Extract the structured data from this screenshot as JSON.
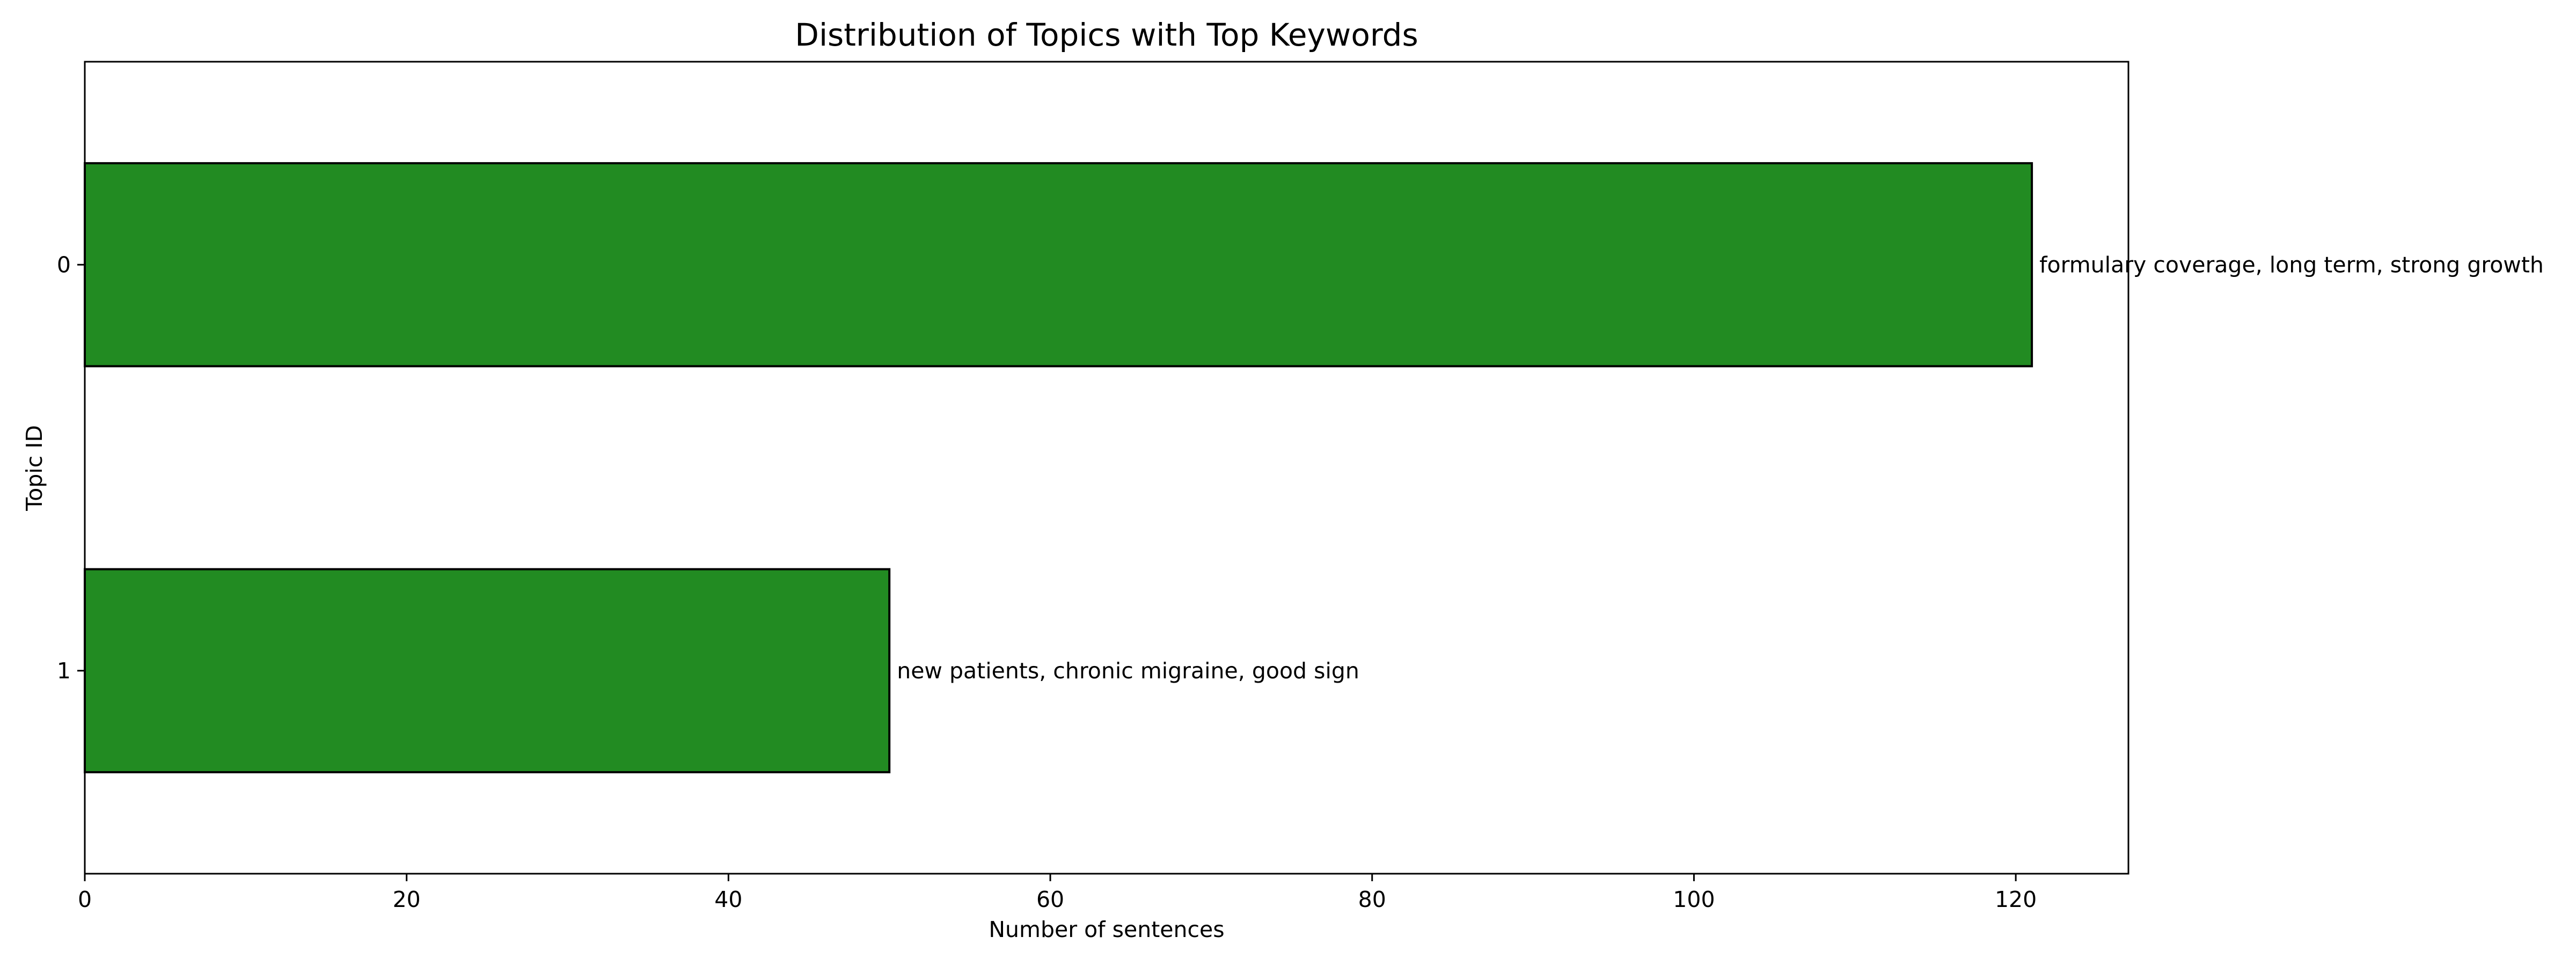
{
  "chart_data": {
    "type": "bar",
    "orientation": "horizontal",
    "title": "Distribution of Topics with Top Keywords",
    "xlabel": "Number of sentences",
    "ylabel": "Topic ID",
    "categories": [
      "0",
      "1"
    ],
    "values": [
      121,
      50
    ],
    "data_labels": [
      "formulary coverage, long term, strong growth",
      "new patients, chronic migraine, good sign"
    ],
    "xlim": [
      0,
      127
    ],
    "xticks": [
      0,
      20,
      40,
      60,
      80,
      100,
      120
    ],
    "grid": false,
    "legend": false,
    "bar_color": "#228B22",
    "bar_edge_color": "#000000"
  }
}
